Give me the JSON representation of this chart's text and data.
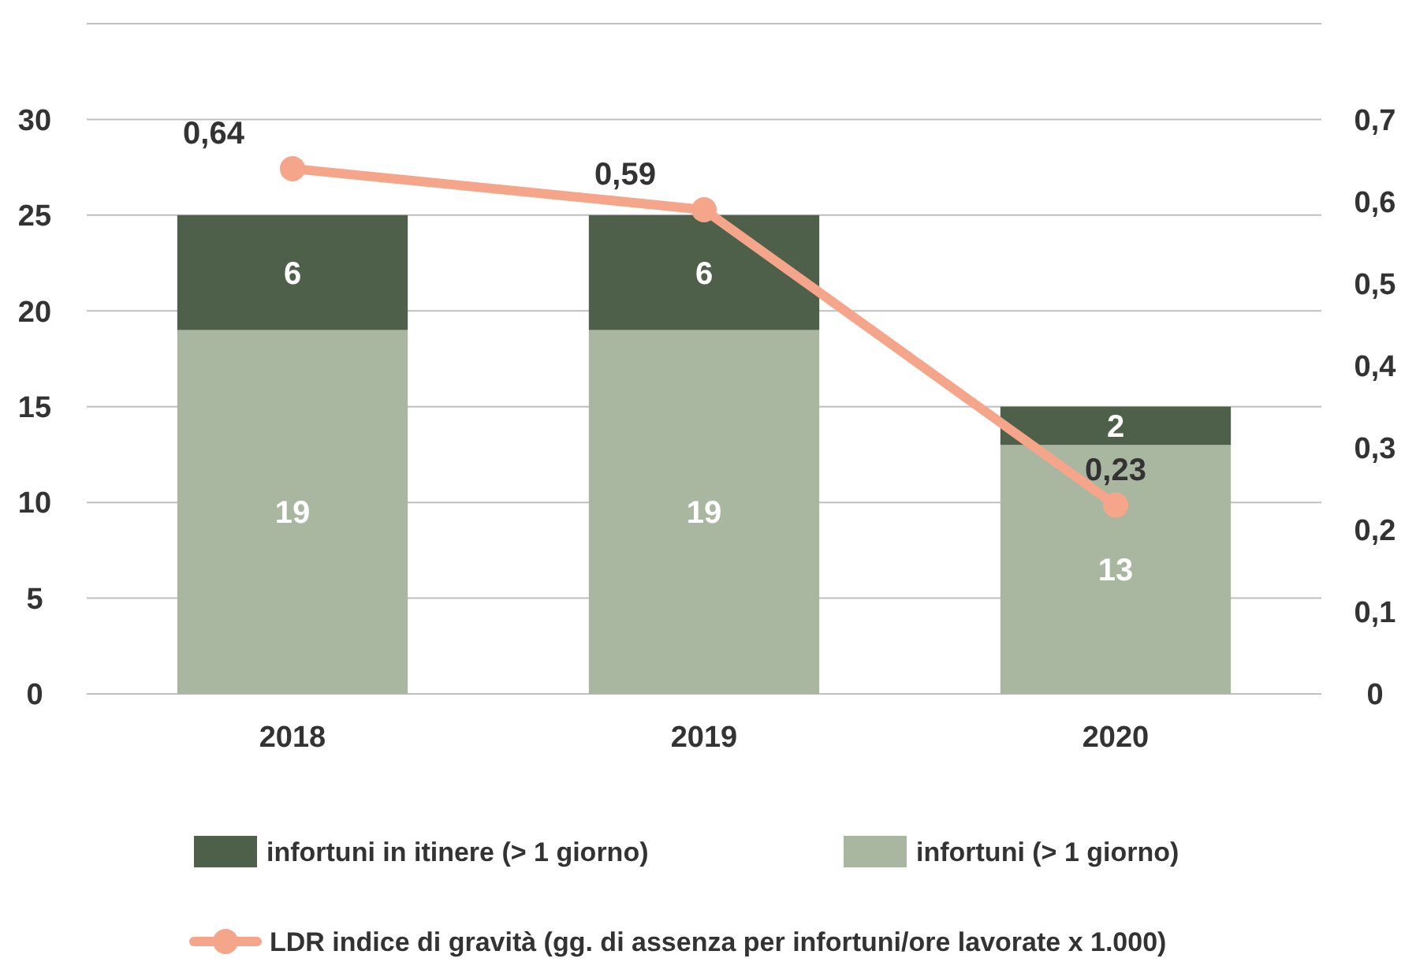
{
  "chart_data": {
    "type": "bar",
    "stacked": true,
    "categories": [
      "2018",
      "2019",
      "2020"
    ],
    "series": [
      {
        "name": "infortuni (> 1 giorno)",
        "color": "#a9b6a0",
        "values": [
          19,
          19,
          13
        ]
      },
      {
        "name": "infortuni in itinere (> 1 giorno)",
        "color": "#4e604a",
        "values": [
          6,
          6,
          2
        ]
      },
      {
        "name": "LDR indice di gravità (gg. di assenza per infortuni/ore lavorate x 1.000)",
        "type": "line",
        "axis": "y2",
        "color": "#f4a58a",
        "marker": "circle",
        "values": [
          0.64,
          0.59,
          0.23
        ],
        "value_labels": [
          "0,64",
          "0,59",
          "0,23"
        ]
      }
    ],
    "ylim": [
      0,
      35
    ],
    "yticks": [
      0,
      5,
      10,
      15,
      20,
      25,
      30,
      {
        "value": 35,
        "label": null
      }
    ],
    "y2lim": [
      0,
      0.8167
    ],
    "y2ticks": [
      {
        "value": 0,
        "label": "0"
      },
      {
        "value": 0.1,
        "label": "0,1"
      },
      {
        "value": 0.2,
        "label": "0,2"
      },
      {
        "value": 0.3,
        "label": "0,3"
      },
      {
        "value": 0.4,
        "label": "0,4"
      },
      {
        "value": 0.5,
        "label": "0,5"
      },
      {
        "value": 0.6,
        "label": "0,6"
      },
      {
        "value": 0.7,
        "label": "0,7"
      }
    ],
    "grid": "y",
    "data_labels": true,
    "legend": "bottom"
  }
}
